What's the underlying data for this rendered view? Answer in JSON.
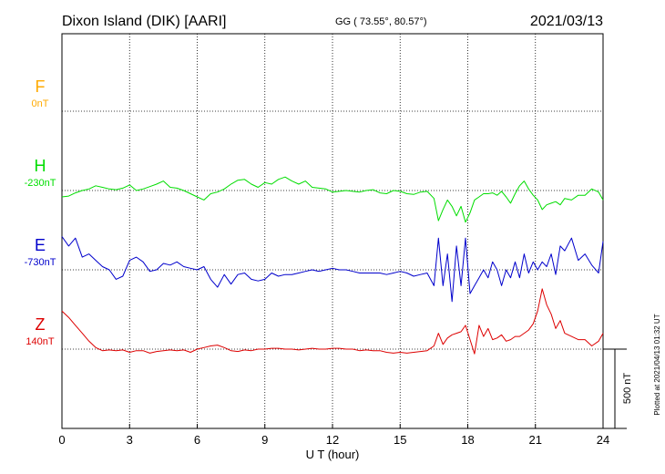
{
  "header": {
    "station": "Dixon Island (DIK)  [AARI]",
    "coords": "GG ( 73.55°,  80.57°)",
    "date": "2021/03/13"
  },
  "plotted_note": "Plotted at 2021/04/13 01:32 UT",
  "scale_bar": {
    "label": "500 nT",
    "value_nT": 500
  },
  "colors": {
    "F": "#ffaa00",
    "H": "#00dd00",
    "E": "#0000cc",
    "Z": "#dd0000"
  },
  "chart_data": {
    "type": "line",
    "xlabel": "U T (hour)",
    "xlim": [
      0,
      24
    ],
    "x_ticks": [
      0,
      3,
      6,
      9,
      12,
      15,
      18,
      21,
      24
    ],
    "components": [
      {
        "name": "F",
        "base_label": "0nT",
        "level": 3,
        "values": []
      },
      {
        "name": "H",
        "base_label": "-230nT",
        "level": 2,
        "x": [
          0,
          0.3,
          0.6,
          0.9,
          1.2,
          1.5,
          1.8,
          2.1,
          2.4,
          2.7,
          3.0,
          3.3,
          3.6,
          3.9,
          4.2,
          4.5,
          4.8,
          5.1,
          5.4,
          5.7,
          6.0,
          6.3,
          6.6,
          6.9,
          7.2,
          7.5,
          7.8,
          8.1,
          8.4,
          8.7,
          9.0,
          9.3,
          9.6,
          9.9,
          10.2,
          10.5,
          10.8,
          11.1,
          11.4,
          11.7,
          12.0,
          12.3,
          12.6,
          12.9,
          13.2,
          13.5,
          13.8,
          14.1,
          14.4,
          14.7,
          15.0,
          15.3,
          15.6,
          15.9,
          16.2,
          16.5,
          16.7,
          16.9,
          17.1,
          17.3,
          17.5,
          17.7,
          17.9,
          18.1,
          18.3,
          18.5,
          18.7,
          18.9,
          19.1,
          19.3,
          19.5,
          19.7,
          19.9,
          20.1,
          20.3,
          20.5,
          20.7,
          20.9,
          21.1,
          21.3,
          21.5,
          21.7,
          21.9,
          22.1,
          22.3,
          22.6,
          22.9,
          23.2,
          23.5,
          23.8,
          24.0
        ],
        "values": [
          -40,
          -35,
          -15,
          0,
          10,
          30,
          20,
          10,
          5,
          15,
          35,
          0,
          10,
          25,
          40,
          60,
          20,
          15,
          0,
          -20,
          -40,
          -60,
          -20,
          -10,
          10,
          40,
          65,
          70,
          40,
          20,
          50,
          40,
          70,
          85,
          60,
          40,
          60,
          20,
          15,
          10,
          -10,
          -5,
          0,
          -5,
          -10,
          0,
          5,
          -15,
          -20,
          0,
          -5,
          -20,
          -25,
          -10,
          -5,
          -50,
          -190,
          -120,
          -60,
          -100,
          -160,
          -100,
          -200,
          -140,
          -60,
          -40,
          -20,
          -20,
          -15,
          -30,
          -5,
          -40,
          -80,
          -20,
          30,
          60,
          10,
          -30,
          -60,
          -120,
          -90,
          -80,
          -70,
          -90,
          -50,
          -60,
          -30,
          -30,
          10,
          -10,
          -60
        ]
      },
      {
        "name": "E",
        "base_label": "-730nT",
        "level": 1,
        "x": [
          0,
          0.3,
          0.6,
          0.9,
          1.2,
          1.5,
          1.8,
          2.1,
          2.4,
          2.7,
          3.0,
          3.3,
          3.6,
          3.9,
          4.2,
          4.5,
          4.8,
          5.1,
          5.4,
          5.7,
          6.0,
          6.3,
          6.6,
          6.9,
          7.2,
          7.5,
          7.8,
          8.1,
          8.4,
          8.7,
          9.0,
          9.3,
          9.6,
          9.9,
          10.2,
          10.5,
          10.8,
          11.1,
          11.4,
          11.7,
          12.0,
          12.3,
          12.6,
          12.9,
          13.2,
          13.5,
          13.8,
          14.1,
          14.4,
          14.7,
          15.0,
          15.3,
          15.6,
          15.9,
          16.2,
          16.5,
          16.7,
          16.9,
          17.1,
          17.3,
          17.5,
          17.7,
          17.9,
          18.1,
          18.3,
          18.5,
          18.7,
          18.9,
          19.1,
          19.3,
          19.5,
          19.7,
          19.9,
          20.1,
          20.3,
          20.5,
          20.7,
          20.9,
          21.1,
          21.3,
          21.5,
          21.7,
          21.9,
          22.1,
          22.3,
          22.6,
          22.9,
          23.2,
          23.5,
          23.8,
          24.0
        ],
        "values": [
          210,
          150,
          200,
          80,
          100,
          60,
          20,
          0,
          -60,
          -40,
          60,
          80,
          50,
          -10,
          0,
          40,
          30,
          50,
          20,
          10,
          0,
          20,
          -60,
          -110,
          -30,
          -90,
          -30,
          -20,
          -60,
          -70,
          -60,
          -20,
          -40,
          -30,
          -30,
          -20,
          -10,
          0,
          -10,
          0,
          10,
          0,
          0,
          -10,
          -20,
          -20,
          -20,
          -20,
          -30,
          -20,
          -10,
          -20,
          -40,
          -30,
          -20,
          -100,
          200,
          -100,
          100,
          -200,
          150,
          -100,
          200,
          -150,
          -100,
          -50,
          0,
          -50,
          50,
          0,
          -100,
          0,
          -50,
          50,
          -50,
          100,
          -20,
          50,
          0,
          50,
          20,
          100,
          -30,
          150,
          120,
          200,
          60,
          100,
          30,
          -20,
          180
        ]
      },
      {
        "name": "Z",
        "base_label": "140nT",
        "level": 0,
        "x": [
          0,
          0.3,
          0.6,
          0.9,
          1.2,
          1.5,
          1.8,
          2.1,
          2.4,
          2.7,
          3.0,
          3.3,
          3.6,
          3.9,
          4.2,
          4.5,
          4.8,
          5.1,
          5.4,
          5.7,
          6.0,
          6.3,
          6.6,
          6.9,
          7.2,
          7.5,
          7.8,
          8.1,
          8.4,
          8.7,
          9.0,
          9.3,
          9.6,
          9.9,
          10.2,
          10.5,
          10.8,
          11.1,
          11.4,
          11.7,
          12.0,
          12.3,
          12.6,
          12.9,
          13.2,
          13.5,
          13.8,
          14.1,
          14.4,
          14.7,
          15.0,
          15.3,
          15.6,
          15.9,
          16.2,
          16.5,
          16.7,
          16.9,
          17.1,
          17.3,
          17.5,
          17.7,
          17.9,
          18.1,
          18.3,
          18.5,
          18.7,
          18.9,
          19.1,
          19.3,
          19.5,
          19.7,
          19.9,
          20.1,
          20.3,
          20.5,
          20.7,
          20.9,
          21.1,
          21.3,
          21.5,
          21.7,
          21.9,
          22.1,
          22.3,
          22.6,
          22.9,
          23.2,
          23.5,
          23.8,
          24.0
        ],
        "values": [
          240,
          200,
          150,
          100,
          50,
          10,
          -10,
          -5,
          -10,
          -5,
          -20,
          -10,
          -10,
          -25,
          -15,
          -10,
          -5,
          -10,
          -5,
          -20,
          0,
          10,
          20,
          25,
          10,
          -10,
          -15,
          -5,
          -10,
          0,
          0,
          5,
          5,
          0,
          0,
          -5,
          0,
          5,
          0,
          0,
          5,
          5,
          0,
          0,
          -10,
          -5,
          -10,
          -10,
          -20,
          -25,
          -20,
          -25,
          -20,
          -15,
          -10,
          20,
          100,
          30,
          70,
          90,
          100,
          110,
          150,
          60,
          -30,
          150,
          80,
          130,
          60,
          70,
          90,
          50,
          60,
          80,
          80,
          100,
          120,
          160,
          240,
          380,
          280,
          220,
          130,
          180,
          100,
          80,
          60,
          60,
          20,
          50,
          100
        ]
      }
    ]
  }
}
